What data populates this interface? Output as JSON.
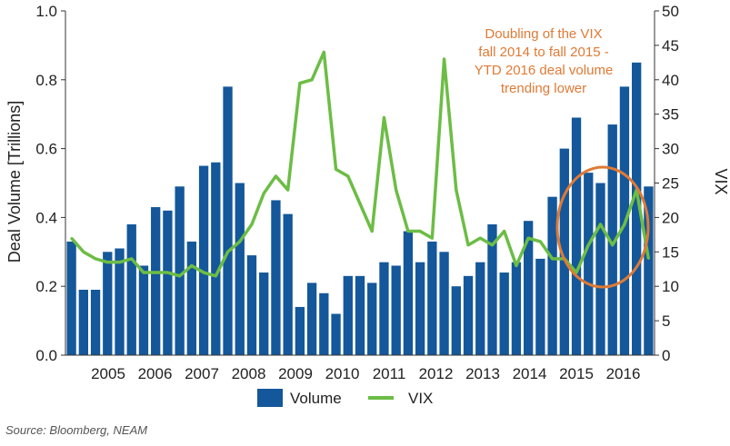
{
  "chart_data": {
    "type": "bar+line",
    "x_year_labels": [
      "2005",
      "2006",
      "2007",
      "2008",
      "2009",
      "2010",
      "2011",
      "2012",
      "2013",
      "2014",
      "2015",
      "2016"
    ],
    "left_axis": {
      "label": "Deal Volume [Trillions]",
      "ylim": [
        0,
        1.0
      ],
      "ticks": [
        "0.0",
        "0.2",
        "0.4",
        "0.6",
        "0.8",
        "1.0"
      ]
    },
    "right_axis": {
      "label": "VIX",
      "ylim": [
        0,
        50
      ],
      "ticks": [
        "0",
        "5",
        "10",
        "15",
        "20",
        "25",
        "30",
        "35",
        "40",
        "45",
        "50"
      ]
    },
    "series": [
      {
        "name": "Volume",
        "type": "bar",
        "axis": "left",
        "color": "#14579a",
        "values": [
          0.33,
          0.19,
          0.19,
          0.3,
          0.31,
          0.38,
          0.26,
          0.43,
          0.42,
          0.49,
          0.33,
          0.55,
          0.56,
          0.78,
          0.5,
          0.29,
          0.24,
          0.45,
          0.41,
          0.14,
          0.21,
          0.18,
          0.12,
          0.23,
          0.23,
          0.21,
          0.27,
          0.26,
          0.36,
          0.27,
          0.33,
          0.3,
          0.2,
          0.23,
          0.27,
          0.38,
          0.24,
          0.27,
          0.39,
          0.28,
          0.46,
          0.6,
          0.69,
          0.53,
          0.5,
          0.67,
          0.78,
          0.85,
          0.49
        ]
      },
      {
        "name": "VIX",
        "type": "line",
        "axis": "right",
        "color": "#6cbd45",
        "values": [
          17,
          15,
          14,
          13.5,
          13.5,
          14,
          12,
          12,
          12,
          11.5,
          13,
          12,
          11.5,
          15,
          16.5,
          19,
          23.5,
          26,
          24,
          39.5,
          40,
          44,
          27,
          26,
          22,
          18,
          34.5,
          24,
          18,
          18,
          17,
          43,
          24,
          16,
          17,
          16,
          18,
          13,
          17,
          16.5,
          14,
          14,
          12,
          16,
          19,
          16,
          19,
          24,
          14
        ]
      }
    ],
    "legend": [
      "Volume",
      "VIX"
    ],
    "annotation": [
      "Doubling of the VIX",
      "fall 2014 to fall 2015 -",
      "YTD 2016 deal volume",
      "trending lower"
    ],
    "annotation_color": "#e07a35",
    "source": "Source: Bloomberg, NEAM"
  }
}
